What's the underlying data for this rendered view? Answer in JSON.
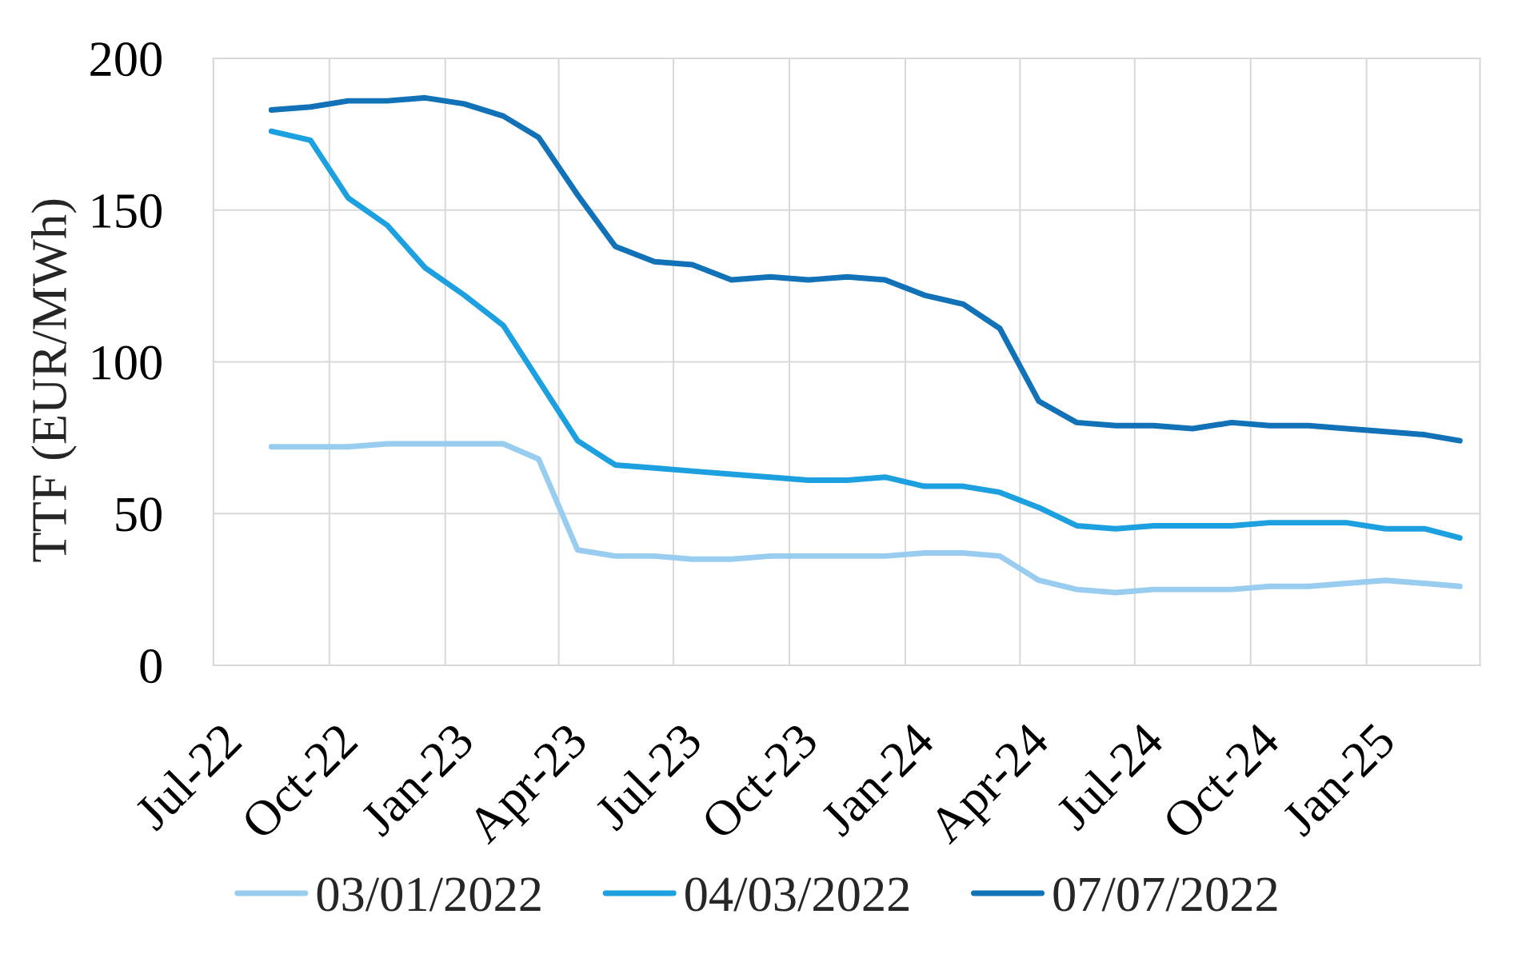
{
  "chart_data": {
    "type": "line",
    "ylabel": "TTF (EUR/MWh)",
    "x": [
      "2022-08-16",
      "2022-09-16",
      "2022-10-16",
      "2022-11-16",
      "2022-12-16",
      "2023-01-16",
      "2023-02-16",
      "2023-03-16",
      "2023-04-16",
      "2023-05-16",
      "2023-06-16",
      "2023-07-16",
      "2023-08-16",
      "2023-09-16",
      "2023-10-16",
      "2023-11-16",
      "2023-12-16",
      "2024-01-16",
      "2024-02-16",
      "2024-03-16",
      "2024-04-16",
      "2024-05-16",
      "2024-06-16",
      "2024-07-16",
      "2024-08-16",
      "2024-09-16",
      "2024-10-16",
      "2024-11-16",
      "2024-12-16",
      "2025-01-16",
      "2025-02-16",
      "2025-03-16"
    ],
    "series": [
      {
        "name": "03/01/2022",
        "color": "#99cdf0",
        "values": [
          72,
          72,
          72,
          73,
          73,
          73,
          73,
          68,
          38,
          36,
          36,
          35,
          35,
          36,
          36,
          36,
          36,
          37,
          37,
          36,
          28,
          25,
          24,
          25,
          25,
          25,
          26,
          26,
          27,
          28,
          27,
          26
        ]
      },
      {
        "name": "04/03/2022",
        "color": "#1ca0e0",
        "values": [
          176,
          173,
          154,
          145,
          131,
          122,
          112,
          94,
          74,
          66,
          65,
          64,
          63,
          62,
          61,
          61,
          62,
          59,
          59,
          57,
          52,
          46,
          45,
          46,
          46,
          46,
          47,
          47,
          47,
          45,
          45,
          42
        ]
      },
      {
        "name": "07/07/2022",
        "color": "#1272b8",
        "values": [
          183,
          184,
          186,
          186,
          187,
          185,
          181,
          174,
          155,
          138,
          133,
          132,
          127,
          128,
          127,
          128,
          127,
          122,
          119,
          111,
          87,
          80,
          79,
          79,
          78,
          80,
          79,
          79,
          78,
          77,
          76,
          74
        ]
      }
    ],
    "xlim": [
      "2022-07-01",
      "2025-04-01"
    ],
    "xticks": [
      {
        "value": "2022-07-01",
        "label": "Jul-22"
      },
      {
        "value": "2022-10-01",
        "label": "Oct-22"
      },
      {
        "value": "2023-01-01",
        "label": "Jan-23"
      },
      {
        "value": "2023-04-01",
        "label": "Apr-23"
      },
      {
        "value": "2023-07-01",
        "label": "Jul-23"
      },
      {
        "value": "2023-10-01",
        "label": "Oct-23"
      },
      {
        "value": "2024-01-01",
        "label": "Jan-24"
      },
      {
        "value": "2024-04-01",
        "label": "Apr-24"
      },
      {
        "value": "2024-07-01",
        "label": "Jul-24"
      },
      {
        "value": "2024-10-01",
        "label": "Oct-24"
      },
      {
        "value": "2025-01-01",
        "label": "Jan-25"
      }
    ],
    "ylim": [
      0,
      200
    ],
    "yticks": [
      0,
      50,
      100,
      150,
      200
    ],
    "grid": true,
    "legend": "bottom",
    "line_style": "solid"
  }
}
